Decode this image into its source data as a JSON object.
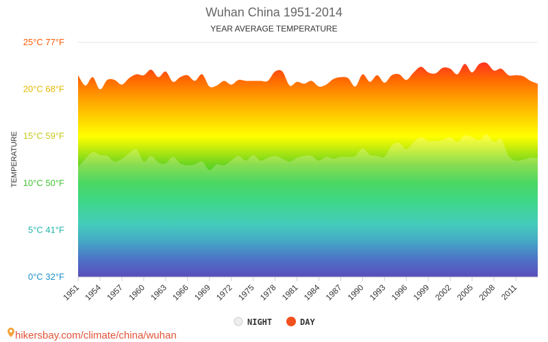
{
  "chart_data": {
    "type": "area",
    "title": "Wuhan China 1951-2014",
    "subtitle": "YEAR AVERAGE TEMPERATURE",
    "ylabel": "TEMPERATURE",
    "xlabel": "",
    "ylim": [
      0,
      25
    ],
    "xlim": [
      1951,
      2014
    ],
    "grid": true,
    "legend_position": "bottom-center",
    "y_ticks": [
      {
        "value": 0,
        "label": "0°C 32°F",
        "color": "#1a8fc8"
      },
      {
        "value": 5,
        "label": "5°C 41°F",
        "color": "#20b2aa"
      },
      {
        "value": 10,
        "label": "10°C 50°F",
        "color": "#44c235"
      },
      {
        "value": 15,
        "label": "15°C 59°F",
        "color": "#c4c81a"
      },
      {
        "value": 20,
        "label": "20°C 68°F",
        "color": "#e6b800"
      },
      {
        "value": 25,
        "label": "25°C 77°F",
        "color": "#ff5a00"
      }
    ],
    "x_ticks": [
      "1951",
      "1954",
      "1957",
      "1960",
      "1963",
      "1966",
      "1969",
      "1972",
      "1975",
      "1978",
      "1981",
      "1984",
      "1987",
      "1990",
      "1993",
      "1996",
      "1999",
      "2002",
      "2005",
      "2008",
      "2011"
    ],
    "x": [
      1951,
      1952,
      1953,
      1954,
      1955,
      1956,
      1957,
      1958,
      1959,
      1960,
      1961,
      1962,
      1963,
      1964,
      1965,
      1966,
      1967,
      1968,
      1969,
      1970,
      1971,
      1972,
      1973,
      1974,
      1975,
      1976,
      1977,
      1978,
      1979,
      1980,
      1981,
      1982,
      1983,
      1984,
      1985,
      1986,
      1987,
      1988,
      1989,
      1990,
      1991,
      1992,
      1993,
      1994,
      1995,
      1996,
      1997,
      1998,
      1999,
      2000,
      2001,
      2002,
      2003,
      2004,
      2005,
      2006,
      2007,
      2008,
      2009,
      2010,
      2011,
      2012,
      2013,
      2014
    ],
    "series": [
      {
        "name": "NIGHT",
        "color": "#dddddd",
        "values": [
          11.7,
          12.6,
          13.3,
          13.0,
          12.9,
          12.3,
          12.6,
          13.2,
          13.6,
          12.3,
          12.9,
          12.2,
          12.1,
          12.8,
          12.1,
          11.9,
          12.0,
          12.3,
          11.4,
          12.0,
          11.9,
          12.4,
          12.9,
          12.4,
          13.0,
          12.4,
          12.7,
          12.9,
          12.6,
          12.3,
          12.7,
          12.9,
          12.9,
          12.4,
          12.8,
          12.6,
          12.8,
          12.8,
          12.9,
          13.7,
          13.0,
          12.9,
          12.8,
          14.0,
          14.3,
          13.6,
          14.4,
          14.9,
          14.5,
          14.5,
          14.6,
          14.9,
          14.4,
          15.1,
          14.9,
          14.6,
          15.2,
          14.4,
          14.7,
          12.9,
          12.4,
          12.5,
          12.7,
          12.7
        ]
      },
      {
        "name": "DAY",
        "color": "#ff4500",
        "values": [
          21.5,
          20.4,
          21.3,
          20.0,
          21.0,
          21.0,
          20.5,
          21.2,
          21.6,
          21.5,
          22.1,
          21.3,
          21.9,
          20.8,
          21.3,
          21.5,
          20.9,
          21.6,
          20.3,
          20.4,
          20.9,
          20.5,
          21.0,
          20.9,
          20.9,
          20.9,
          20.9,
          21.9,
          21.9,
          20.4,
          20.8,
          20.6,
          20.9,
          20.3,
          20.5,
          21.1,
          21.3,
          21.2,
          20.3,
          21.6,
          20.8,
          21.5,
          20.7,
          21.5,
          21.6,
          21.0,
          21.8,
          22.4,
          21.8,
          21.7,
          22.3,
          22.2,
          21.6,
          22.7,
          21.8,
          22.7,
          22.8,
          22.0,
          22.2,
          21.5,
          21.5,
          21.4,
          20.9,
          20.6
        ]
      }
    ]
  },
  "legend": [
    {
      "label": "NIGHT",
      "color": "#eeeeee",
      "border": "#cccccc"
    },
    {
      "label": "DAY",
      "color": "#f2501d",
      "border": "#f2501d"
    }
  ],
  "source": "hikersbay.com/climate/china/wuhan",
  "icons": {
    "source": "location-pin-icon"
  }
}
